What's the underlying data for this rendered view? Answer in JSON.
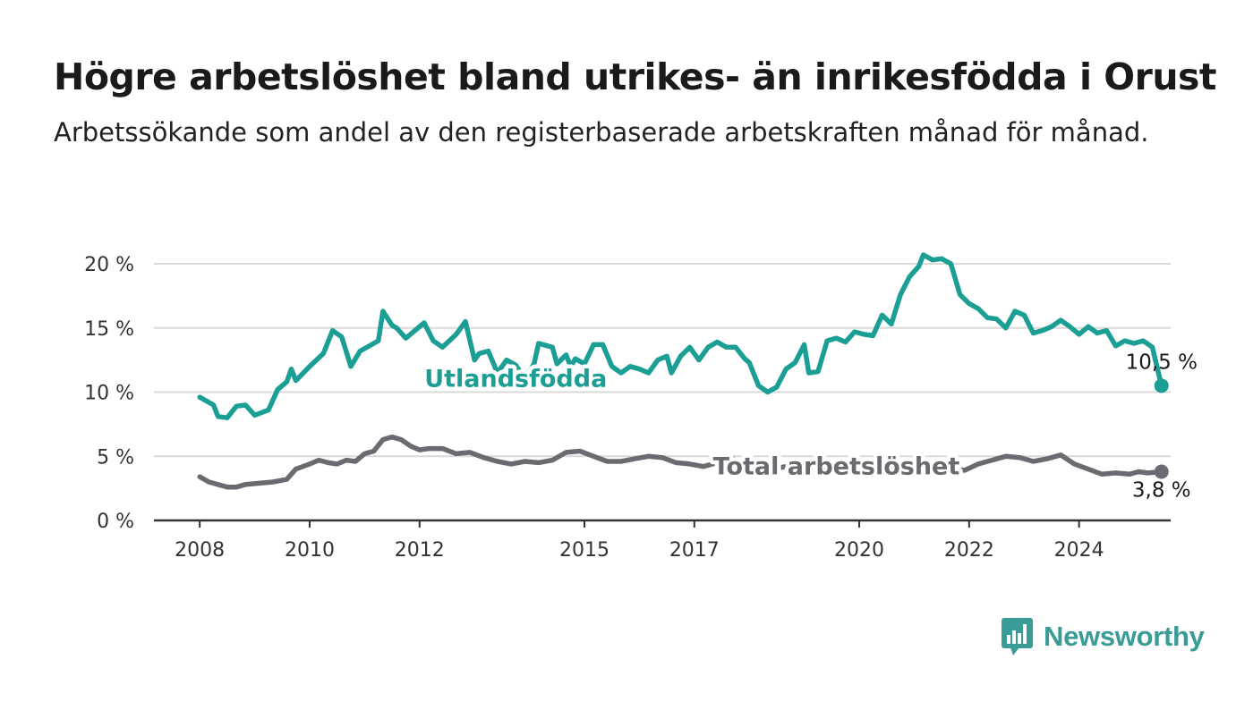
{
  "title": "Högre arbetslöshet bland utrikes- än inrikesfödda i Orust",
  "subtitle": "Arbetssökande som andel av den registerbaserade arbetskraften månad för månad.",
  "brand": {
    "name": "Newsworthy",
    "color": "#3a9c97",
    "icon": "bar-chart-speech-bubble-icon"
  },
  "chart_data": {
    "type": "line",
    "title": "Högre arbetslöshet bland utrikes- än inrikesfödda i Orust",
    "subtitle": "Arbetssökande som andel av den registerbaserade arbetskraften månad för månad.",
    "xlabel": "",
    "ylabel": "",
    "x_ticks": [
      "2008",
      "2010",
      "2012",
      "2015",
      "2017",
      "2020",
      "2022",
      "2024"
    ],
    "y_ticks": [
      "0 %",
      "5 %",
      "10 %",
      "15 %",
      "20 %"
    ],
    "ylim": [
      0,
      22
    ],
    "xlim": [
      "2007-03",
      "2025-09"
    ],
    "grid": true,
    "series": [
      {
        "name": "Utlandsfödda",
        "color": "#1b9e94",
        "end_label": "10,5 %",
        "label_position": "2013-10",
        "points": [
          [
            "2008-01",
            9.6
          ],
          [
            "2008-04",
            9.0
          ],
          [
            "2008-05",
            8.1
          ],
          [
            "2008-07",
            8.0
          ],
          [
            "2008-09",
            8.9
          ],
          [
            "2008-11",
            9.0
          ],
          [
            "2009-01",
            8.2
          ],
          [
            "2009-04",
            8.6
          ],
          [
            "2009-06",
            10.2
          ],
          [
            "2009-08",
            10.8
          ],
          [
            "2009-09",
            11.8
          ],
          [
            "2009-10",
            10.9
          ],
          [
            "2010-01",
            12.0
          ],
          [
            "2010-04",
            13.0
          ],
          [
            "2010-06",
            14.8
          ],
          [
            "2010-08",
            14.3
          ],
          [
            "2010-10",
            12.0
          ],
          [
            "2010-12",
            13.2
          ],
          [
            "2011-03",
            13.8
          ],
          [
            "2011-04",
            14.0
          ],
          [
            "2011-05",
            16.3
          ],
          [
            "2011-07",
            15.2
          ],
          [
            "2011-08",
            15.0
          ],
          [
            "2011-10",
            14.2
          ],
          [
            "2011-12",
            14.8
          ],
          [
            "2012-02",
            15.4
          ],
          [
            "2012-04",
            14.0
          ],
          [
            "2012-06",
            13.5
          ],
          [
            "2012-09",
            14.5
          ],
          [
            "2012-11",
            15.5
          ],
          [
            "2013-01",
            12.5
          ],
          [
            "2013-02",
            13.0
          ],
          [
            "2013-04",
            13.2
          ],
          [
            "2013-06",
            11.5
          ],
          [
            "2013-08",
            12.5
          ],
          [
            "2013-10",
            12.1
          ],
          [
            "2013-12",
            11.0
          ],
          [
            "2014-02",
            12.2
          ],
          [
            "2014-03",
            13.8
          ],
          [
            "2014-06",
            13.5
          ],
          [
            "2014-07",
            12.2
          ],
          [
            "2014-09",
            12.9
          ],
          [
            "2014-10",
            12.0
          ],
          [
            "2014-11",
            12.6
          ],
          [
            "2015-01",
            12.2
          ],
          [
            "2015-03",
            13.7
          ],
          [
            "2015-05",
            13.7
          ],
          [
            "2015-07",
            12.0
          ],
          [
            "2015-09",
            11.5
          ],
          [
            "2015-11",
            12.0
          ],
          [
            "2016-01",
            11.8
          ],
          [
            "2016-03",
            11.5
          ],
          [
            "2016-05",
            12.5
          ],
          [
            "2016-07",
            12.8
          ],
          [
            "2016-08",
            11.5
          ],
          [
            "2016-10",
            12.8
          ],
          [
            "2016-12",
            13.5
          ],
          [
            "2017-02",
            12.5
          ],
          [
            "2017-04",
            13.5
          ],
          [
            "2017-06",
            13.9
          ],
          [
            "2017-08",
            13.5
          ],
          [
            "2017-10",
            13.5
          ],
          [
            "2017-12",
            12.6
          ],
          [
            "2018-01",
            12.3
          ],
          [
            "2018-03",
            10.5
          ],
          [
            "2018-05",
            10.0
          ],
          [
            "2018-07",
            10.4
          ],
          [
            "2018-09",
            11.8
          ],
          [
            "2018-11",
            12.3
          ],
          [
            "2019-01",
            13.7
          ],
          [
            "2019-02",
            11.5
          ],
          [
            "2019-04",
            11.6
          ],
          [
            "2019-06",
            14.0
          ],
          [
            "2019-08",
            14.2
          ],
          [
            "2019-10",
            13.9
          ],
          [
            "2019-12",
            14.7
          ],
          [
            "2020-02",
            14.5
          ],
          [
            "2020-04",
            14.4
          ],
          [
            "2020-06",
            16.0
          ],
          [
            "2020-08",
            15.3
          ],
          [
            "2020-10",
            17.6
          ],
          [
            "2020-12",
            19.0
          ],
          [
            "2021-02",
            19.8
          ],
          [
            "2021-03",
            20.7
          ],
          [
            "2021-05",
            20.3
          ],
          [
            "2021-07",
            20.4
          ],
          [
            "2021-09",
            20.0
          ],
          [
            "2021-11",
            17.6
          ],
          [
            "2022-01",
            16.9
          ],
          [
            "2022-03",
            16.5
          ],
          [
            "2022-05",
            15.8
          ],
          [
            "2022-07",
            15.7
          ],
          [
            "2022-09",
            15.0
          ],
          [
            "2022-11",
            16.3
          ],
          [
            "2023-01",
            16.0
          ],
          [
            "2023-03",
            14.6
          ],
          [
            "2023-05",
            14.8
          ],
          [
            "2023-07",
            15.1
          ],
          [
            "2023-09",
            15.6
          ],
          [
            "2023-11",
            15.1
          ],
          [
            "2024-01",
            14.5
          ],
          [
            "2024-03",
            15.1
          ],
          [
            "2024-05",
            14.6
          ],
          [
            "2024-07",
            14.8
          ],
          [
            "2024-09",
            13.6
          ],
          [
            "2024-11",
            14.0
          ],
          [
            "2025-01",
            13.8
          ],
          [
            "2025-03",
            14.0
          ],
          [
            "2025-05",
            13.5
          ],
          [
            "2025-07",
            10.5
          ]
        ]
      },
      {
        "name": "Total arbetslöshet",
        "color": "#6c6a70",
        "end_label": "3,8 %",
        "label_position": "2019-08",
        "points": [
          [
            "2008-01",
            3.4
          ],
          [
            "2008-03",
            3.0
          ],
          [
            "2008-05",
            2.8
          ],
          [
            "2008-07",
            2.6
          ],
          [
            "2008-09",
            2.6
          ],
          [
            "2008-11",
            2.8
          ],
          [
            "2009-02",
            2.9
          ],
          [
            "2009-05",
            3.0
          ],
          [
            "2009-08",
            3.2
          ],
          [
            "2009-10",
            4.0
          ],
          [
            "2010-01",
            4.4
          ],
          [
            "2010-03",
            4.7
          ],
          [
            "2010-05",
            4.5
          ],
          [
            "2010-07",
            4.4
          ],
          [
            "2010-09",
            4.7
          ],
          [
            "2010-11",
            4.6
          ],
          [
            "2011-01",
            5.2
          ],
          [
            "2011-03",
            5.4
          ],
          [
            "2011-05",
            6.3
          ],
          [
            "2011-07",
            6.5
          ],
          [
            "2011-09",
            6.3
          ],
          [
            "2011-11",
            5.8
          ],
          [
            "2012-01",
            5.5
          ],
          [
            "2012-03",
            5.6
          ],
          [
            "2012-06",
            5.6
          ],
          [
            "2012-09",
            5.2
          ],
          [
            "2012-12",
            5.3
          ],
          [
            "2013-03",
            4.9
          ],
          [
            "2013-06",
            4.6
          ],
          [
            "2013-09",
            4.4
          ],
          [
            "2013-12",
            4.6
          ],
          [
            "2014-03",
            4.5
          ],
          [
            "2014-06",
            4.7
          ],
          [
            "2014-09",
            5.3
          ],
          [
            "2014-12",
            5.4
          ],
          [
            "2015-03",
            5.0
          ],
          [
            "2015-06",
            4.6
          ],
          [
            "2015-09",
            4.6
          ],
          [
            "2015-12",
            4.8
          ],
          [
            "2016-03",
            5.0
          ],
          [
            "2016-06",
            4.9
          ],
          [
            "2016-09",
            4.5
          ],
          [
            "2016-12",
            4.4
          ],
          [
            "2017-03",
            4.2
          ],
          [
            "2017-06",
            4.5
          ],
          [
            "2017-09",
            4.9
          ],
          [
            "2017-12",
            4.3
          ],
          [
            "2018-03",
            4.2
          ],
          [
            "2018-06",
            4.0
          ],
          [
            "2018-09",
            4.2
          ],
          [
            "2018-12",
            4.3
          ],
          [
            "2019-03",
            4.1
          ],
          [
            "2019-06",
            4.2
          ],
          [
            "2019-09",
            4.3
          ],
          [
            "2019-12",
            4.2
          ],
          [
            "2020-03",
            4.0
          ],
          [
            "2020-06",
            4.3
          ],
          [
            "2020-09",
            3.9
          ],
          [
            "2020-12",
            3.7
          ],
          [
            "2021-03",
            3.8
          ],
          [
            "2021-06",
            3.9
          ],
          [
            "2021-09",
            4.1
          ],
          [
            "2021-12",
            3.9
          ],
          [
            "2022-03",
            4.4
          ],
          [
            "2022-06",
            4.7
          ],
          [
            "2022-09",
            5.0
          ],
          [
            "2022-12",
            4.9
          ],
          [
            "2023-03",
            4.6
          ],
          [
            "2023-06",
            4.8
          ],
          [
            "2023-09",
            5.1
          ],
          [
            "2023-12",
            4.4
          ],
          [
            "2024-03",
            4.0
          ],
          [
            "2024-06",
            3.6
          ],
          [
            "2024-09",
            3.7
          ],
          [
            "2024-12",
            3.6
          ],
          [
            "2025-02",
            3.8
          ],
          [
            "2025-04",
            3.7
          ],
          [
            "2025-07",
            3.8
          ]
        ]
      }
    ]
  }
}
